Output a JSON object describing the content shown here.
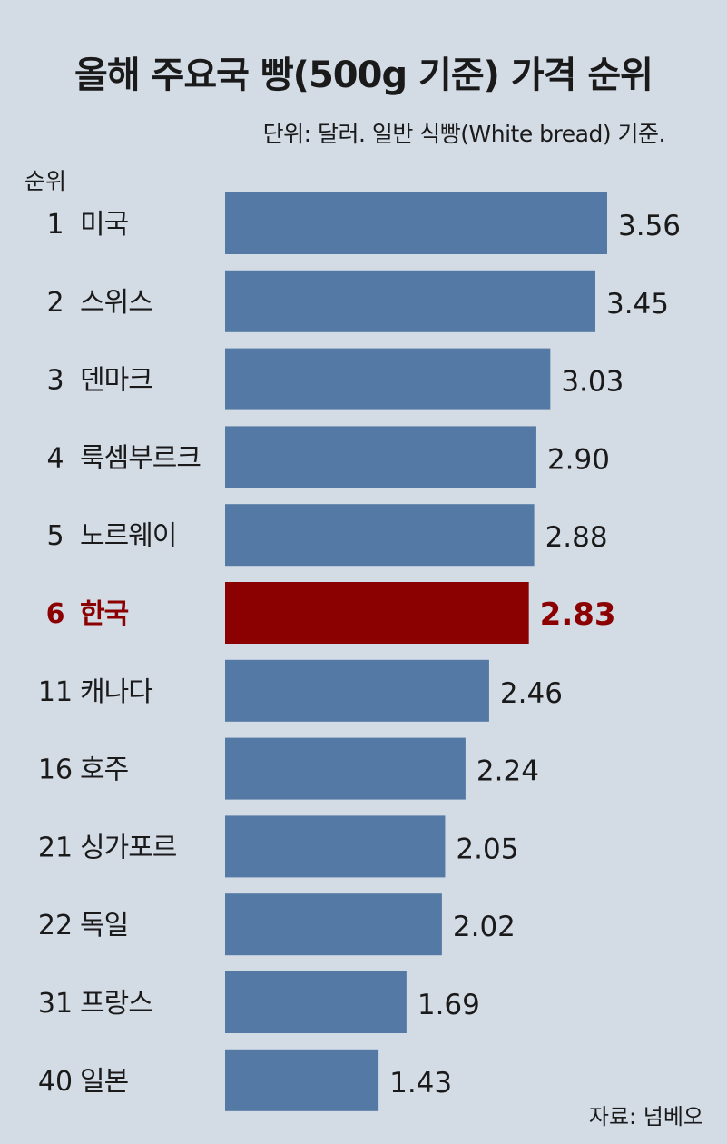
{
  "title": "올해 주요국 빵(500g 기준) 가격 순위",
  "subtitle": "단위: 달러. 일반 식빵(White bread) 기준.",
  "rank_header": "순위",
  "source": "자료: 넘베오",
  "colors": {
    "background": "#d3dbe5",
    "bar": "#5479a5",
    "highlight_bar": "#8b0000",
    "highlight_text": "#8b0000",
    "text": "#1a1a1a"
  },
  "chart_data": {
    "type": "bar",
    "orientation": "horizontal",
    "title": "올해 주요국 빵(500g 기준) 가격 순위",
    "subtitle": "단위: 달러. 일반 식빵(White bread) 기준.",
    "categories": [
      "미국",
      "스위스",
      "덴마크",
      "룩셈부르크",
      "노르웨이",
      "한국",
      "캐나다",
      "호주",
      "싱가포르",
      "독일",
      "프랑스",
      "일본"
    ],
    "ranks": [
      "1",
      "2",
      "3",
      "4",
      "5",
      "6",
      "11",
      "16",
      "21",
      "22",
      "31",
      "40"
    ],
    "values": [
      3.56,
      3.45,
      3.03,
      2.9,
      2.88,
      2.83,
      2.46,
      2.24,
      2.05,
      2.02,
      1.69,
      1.43
    ],
    "value_labels": [
      "3.56",
      "3.45",
      "3.03",
      "2.90",
      "2.88",
      "2.83",
      "2.46",
      "2.24",
      "2.05",
      "2.02",
      "1.69",
      "1.43"
    ],
    "highlight": "한국",
    "xlim": [
      0,
      3.56
    ],
    "grid": false,
    "legend": "none"
  }
}
